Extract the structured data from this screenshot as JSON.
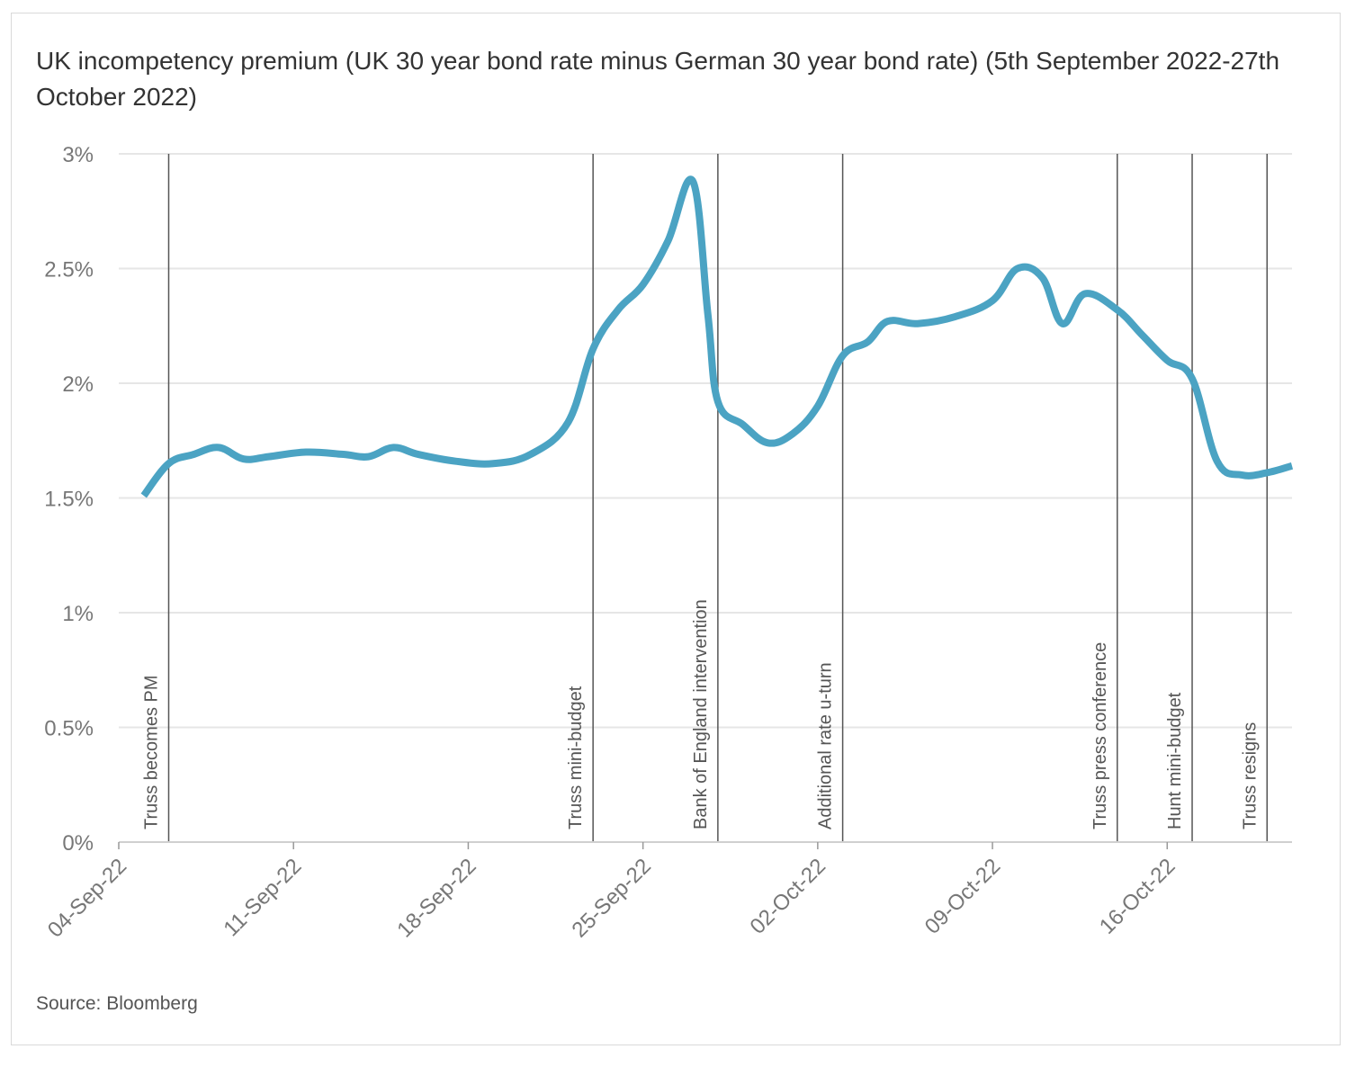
{
  "chart_data": {
    "type": "line",
    "title": "UK incompetency premium (UK 30 year bond rate minus German 30 year bond rate) (5th September 2022-27th October 2022)",
    "source": "Source: Bloomberg",
    "xlabel": "",
    "ylabel": "",
    "x_start_date": "2022-09-04",
    "xlim_days": [
      0,
      47
    ],
    "ylim": [
      0,
      3
    ],
    "yticks": [
      {
        "value": 0,
        "label": "0%"
      },
      {
        "value": 0.5,
        "label": "0.5%"
      },
      {
        "value": 1,
        "label": "1%"
      },
      {
        "value": 1.5,
        "label": "1.5%"
      },
      {
        "value": 2,
        "label": "2%"
      },
      {
        "value": 2.5,
        "label": "2.5%"
      },
      {
        "value": 3,
        "label": "3%"
      }
    ],
    "xticks": [
      {
        "day": 0,
        "label": "04-Sep-22"
      },
      {
        "day": 7,
        "label": "11-Sep-22"
      },
      {
        "day": 14,
        "label": "18-Sep-22"
      },
      {
        "day": 21,
        "label": "25-Sep-22"
      },
      {
        "day": 28,
        "label": "02-Oct-22"
      },
      {
        "day": 35,
        "label": "09-Oct-22"
      },
      {
        "day": 42,
        "label": "16-Oct-22"
      }
    ],
    "series": [
      {
        "name": "UK 30y minus German 30y",
        "color": "#4ba3c3",
        "points": [
          [
            1.0,
            1.51
          ],
          [
            2.0,
            1.65
          ],
          [
            3.0,
            1.69
          ],
          [
            4.0,
            1.72
          ],
          [
            5.0,
            1.67
          ],
          [
            6.0,
            1.68
          ],
          [
            7.5,
            1.7
          ],
          [
            9.0,
            1.69
          ],
          [
            10.0,
            1.68
          ],
          [
            11.0,
            1.72
          ],
          [
            12.0,
            1.69
          ],
          [
            13.5,
            1.66
          ],
          [
            15.0,
            1.65
          ],
          [
            16.5,
            1.69
          ],
          [
            18.0,
            1.83
          ],
          [
            19.0,
            2.15
          ],
          [
            20.0,
            2.32
          ],
          [
            21.0,
            2.43
          ],
          [
            22.0,
            2.62
          ],
          [
            23.0,
            2.88
          ],
          [
            23.6,
            2.3
          ],
          [
            24.0,
            1.92
          ],
          [
            25.0,
            1.82
          ],
          [
            26.0,
            1.74
          ],
          [
            27.0,
            1.78
          ],
          [
            28.0,
            1.9
          ],
          [
            29.0,
            2.12
          ],
          [
            30.0,
            2.18
          ],
          [
            30.8,
            2.27
          ],
          [
            32.0,
            2.26
          ],
          [
            33.5,
            2.29
          ],
          [
            35.0,
            2.36
          ],
          [
            36.0,
            2.5
          ],
          [
            37.0,
            2.46
          ],
          [
            37.8,
            2.26
          ],
          [
            38.7,
            2.39
          ],
          [
            40.0,
            2.32
          ],
          [
            41.0,
            2.21
          ],
          [
            42.0,
            2.1
          ],
          [
            43.0,
            2.02
          ],
          [
            44.0,
            1.66
          ],
          [
            45.0,
            1.6
          ],
          [
            46.0,
            1.61
          ],
          [
            47.0,
            1.64
          ]
        ]
      }
    ],
    "annotations": [
      {
        "day": 2.0,
        "label": "Truss becomes PM"
      },
      {
        "day": 19.0,
        "label": "Truss mini-budget"
      },
      {
        "day": 24.0,
        "label": "Bank of England intervention"
      },
      {
        "day": 29.0,
        "label": "Additional rate u-turn"
      },
      {
        "day": 40.0,
        "label": "Truss press conference"
      },
      {
        "day": 43.0,
        "label": "Hunt mini-budget"
      },
      {
        "day": 46.0,
        "label": "Truss resigns"
      }
    ],
    "grid": true,
    "legend": "none"
  }
}
